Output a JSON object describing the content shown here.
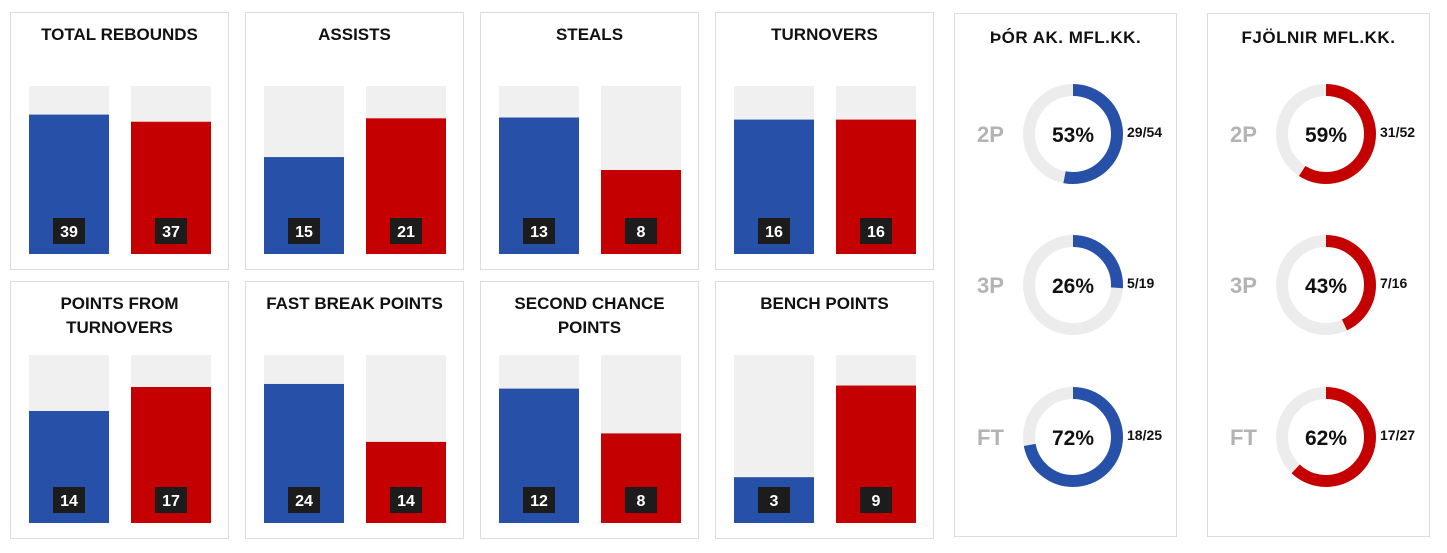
{
  "colors": {
    "home": "#2750a8",
    "away": "#c40000",
    "track": "#f0f0f0",
    "ring_track": "#ececec"
  },
  "chart_data": [
    {
      "type": "bar",
      "title": "TOTAL REBOUNDS",
      "values": [
        39,
        37
      ],
      "max": 47
    },
    {
      "type": "bar",
      "title": "ASSISTS",
      "values": [
        15,
        21
      ],
      "max": 26
    },
    {
      "type": "bar",
      "title": "STEALS",
      "values": [
        13,
        8
      ],
      "max": 16
    },
    {
      "type": "bar",
      "title": "TURNOVERS",
      "values": [
        16,
        16
      ],
      "max": 20
    },
    {
      "type": "bar",
      "title": "POINTS FROM TURNOVERS",
      "values": [
        14,
        17
      ],
      "max": 21
    },
    {
      "type": "bar",
      "title": "FAST BREAK POINTS",
      "values": [
        24,
        14
      ],
      "max": 29
    },
    {
      "type": "bar",
      "title": "SECOND CHANCE POINTS",
      "values": [
        12,
        8
      ],
      "max": 15
    },
    {
      "type": "bar",
      "title": "BENCH POINTS",
      "values": [
        3,
        9
      ],
      "max": 11
    }
  ],
  "shooting": [
    {
      "team": "ÞÓR AK. MFL.KK.",
      "side": "home",
      "rows": [
        {
          "label": "2P",
          "pct": 53,
          "pct_text": "53%",
          "made": "29/54"
        },
        {
          "label": "3P",
          "pct": 26,
          "pct_text": "26%",
          "made": "5/19"
        },
        {
          "label": "FT",
          "pct": 72,
          "pct_text": "72%",
          "made": "18/25"
        }
      ]
    },
    {
      "team": "FJÖLNIR MFL.KK.",
      "side": "away",
      "rows": [
        {
          "label": "2P",
          "pct": 59,
          "pct_text": "59%",
          "made": "31/52"
        },
        {
          "label": "3P",
          "pct": 43,
          "pct_text": "43%",
          "made": "7/16"
        },
        {
          "label": "FT",
          "pct": 62,
          "pct_text": "62%",
          "made": "17/27"
        }
      ]
    }
  ]
}
